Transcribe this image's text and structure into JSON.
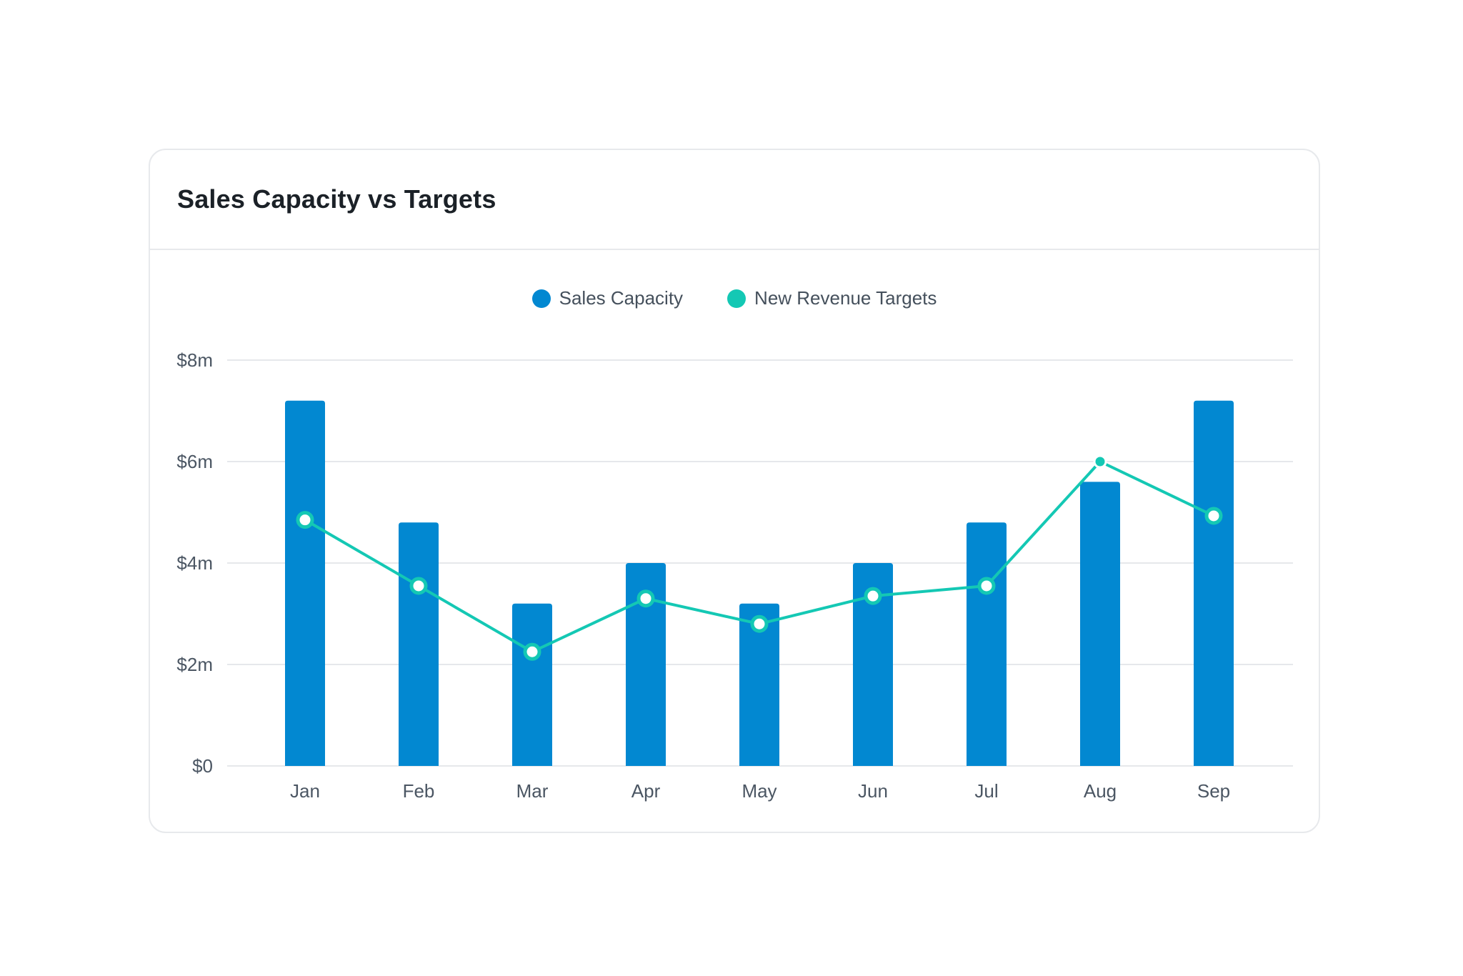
{
  "card": {
    "title": "Sales Capacity vs Targets"
  },
  "chart_data": {
    "type": "bar",
    "title": "Sales Capacity vs Targets",
    "categories": [
      "Jan",
      "Feb",
      "Mar",
      "Apr",
      "May",
      "Jun",
      "Jul",
      "Aug",
      "Sep"
    ],
    "series": [
      {
        "name": "Sales Capacity",
        "type": "bar",
        "color": "#0288d1",
        "values": [
          7.2,
          4.8,
          3.2,
          4.0,
          3.2,
          4.0,
          4.8,
          5.6,
          7.2
        ]
      },
      {
        "name": "New Revenue Targets",
        "type": "line",
        "color": "#14c8b4",
        "values": [
          4.85,
          3.55,
          2.25,
          3.3,
          2.8,
          3.35,
          3.55,
          6.0,
          4.93
        ]
      }
    ],
    "ylim": [
      0,
      8
    ],
    "yticks": [
      0,
      2,
      4,
      6,
      8
    ],
    "ytick_labels": [
      "$0",
      "$2m",
      "$4m",
      "$6m",
      "$8m"
    ],
    "xlabel": "",
    "ylabel": "",
    "grid": true,
    "legend": "top-center"
  }
}
